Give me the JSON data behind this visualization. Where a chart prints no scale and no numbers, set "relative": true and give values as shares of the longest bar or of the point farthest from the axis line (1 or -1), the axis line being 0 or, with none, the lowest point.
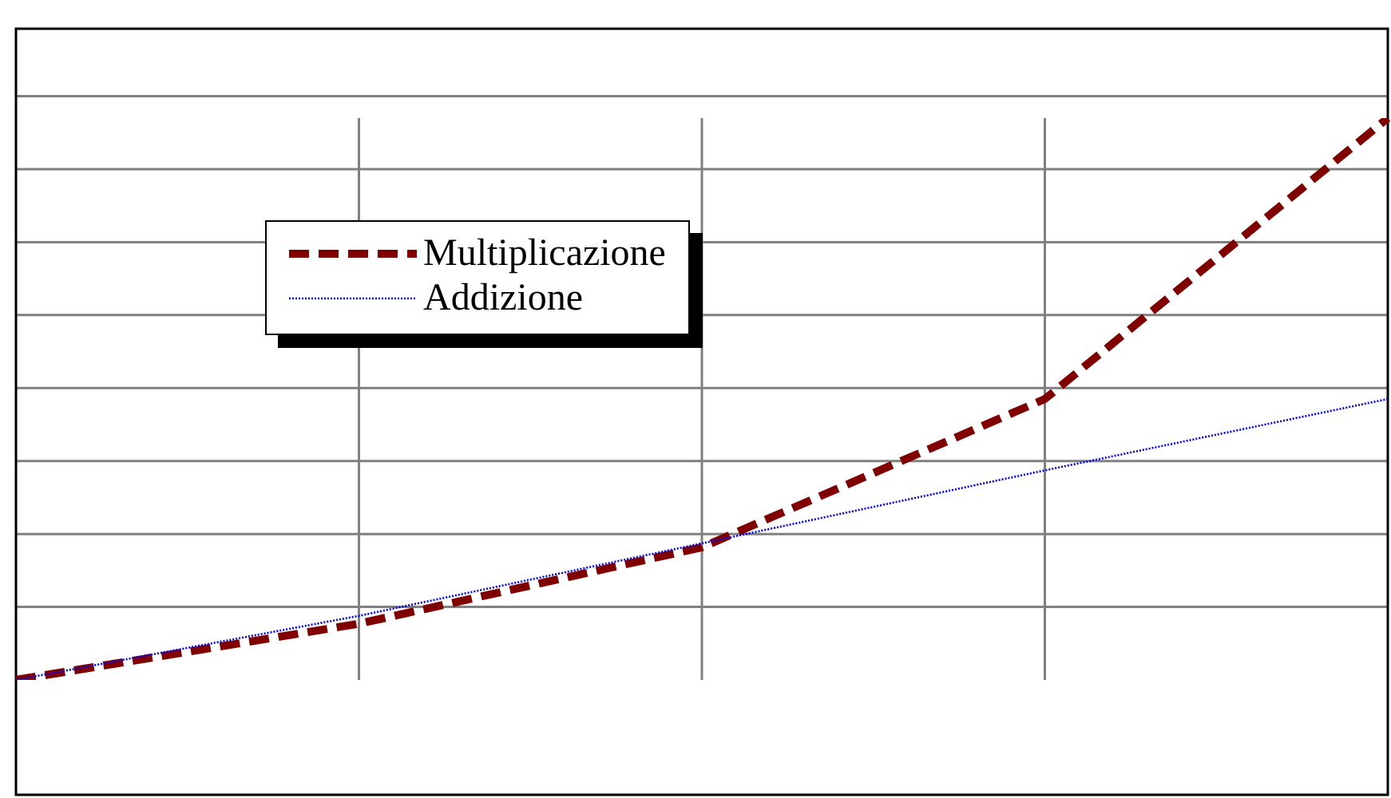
{
  "chart_data": {
    "type": "line",
    "relative": true,
    "categories": [
      null,
      null,
      null,
      null,
      null
    ],
    "series": [
      {
        "name": "Multiplicazione",
        "color": "#800000",
        "line_style": "dashed",
        "values": [
          0,
          0.1,
          0.236,
          0.5,
          1
        ]
      },
      {
        "name": "Addizione",
        "color": "#0000ff",
        "line_style": "dotted",
        "values": [
          0,
          0.114,
          0.243,
          0.373,
          0.5
        ]
      }
    ],
    "grid": true,
    "legend": "top left",
    "marker": "none"
  }
}
